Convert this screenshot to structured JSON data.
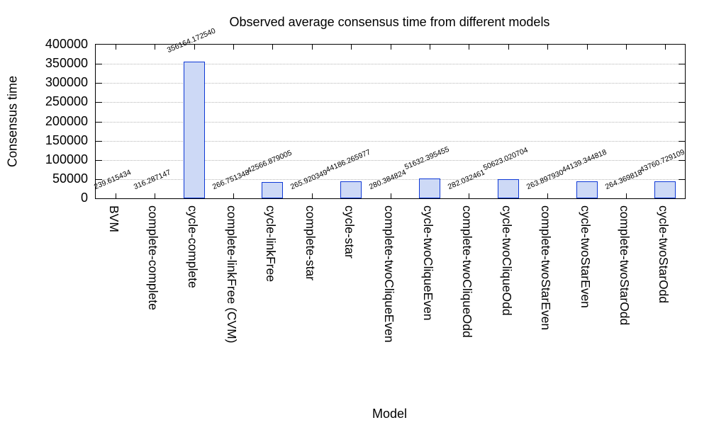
{
  "chart_data": {
    "type": "bar",
    "title": "Observed average consensus time from different models",
    "xlabel": "Model",
    "ylabel": "Consensus time",
    "ylim": [
      0,
      400000
    ],
    "yticks": [
      0,
      50000,
      100000,
      150000,
      200000,
      250000,
      300000,
      350000,
      400000
    ],
    "grid": "horizontal dotted lines at each y tick, ticks mirrored on all four borders",
    "legend": "none",
    "bar_fill": "#cdd9f6",
    "bar_border": "#0d38d6",
    "categories": [
      "BVM",
      "complete-complete",
      "cycle-complete",
      "complete-linkFree (CVM)",
      "cycle-linkFree",
      "complete-star",
      "cycle-star",
      "complete-twoCliqueEven",
      "cycle-twoCliqueEven",
      "complete-twoCliqueOdd",
      "cycle-twoCliqueOdd",
      "complete-twoStarEven",
      "cycle-twoStarEven",
      "complete-twoStarOdd",
      "cycle-twoStarOdd"
    ],
    "values": [
      239.615434,
      316.287147,
      356164.17254,
      266.751348,
      42566.879005,
      265.920349,
      44186.265977,
      280.384824,
      51632.395455,
      282.032461,
      50623.020704,
      263.89793,
      44139.344818,
      264.369818,
      43760.729109
    ],
    "value_labels": [
      "239.615434",
      "316.287147",
      "356164.172540",
      "266.751348",
      "42566.879005",
      "265.920349",
      "44186.265977",
      "280.384824",
      "51632.395455",
      "282.032461",
      "50623.020704",
      "263.897930",
      "44139.344818",
      "264.369818",
      "43760.729109"
    ]
  }
}
